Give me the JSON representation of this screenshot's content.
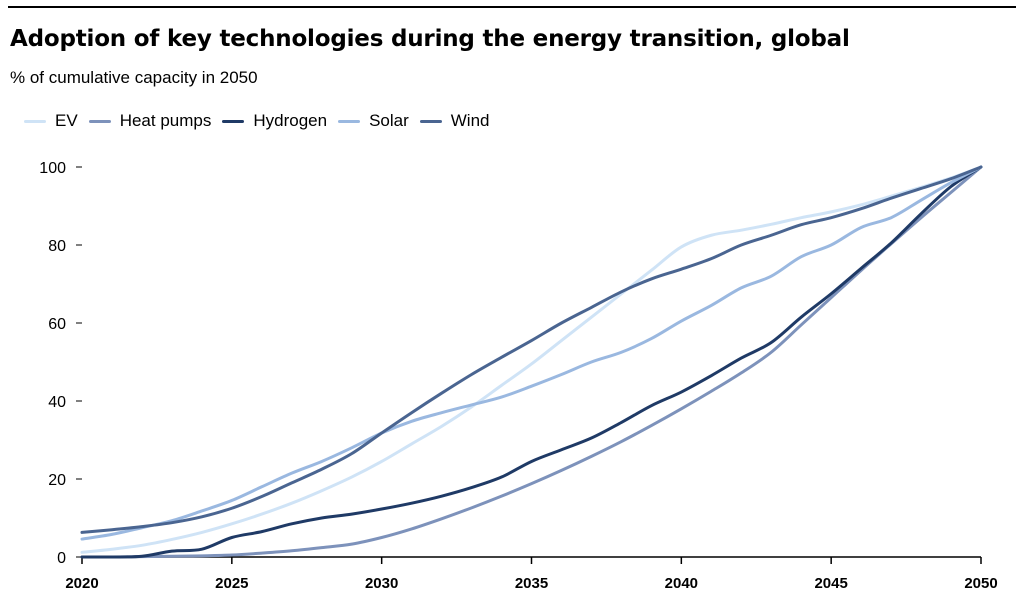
{
  "title": "Adoption of key technologies during the energy transition, global",
  "subtitle": "% of cumulative capacity in 2050",
  "colors": {
    "EV": "#cfe3f6",
    "Heat pumps": "#7d92bb",
    "Hydrogen": "#1f3a66",
    "Solar": "#9ab8e0",
    "Wind": "#4a6591"
  },
  "chart_data": {
    "type": "line",
    "title": "Adoption of key technologies during the energy transition, global",
    "subtitle": "% of cumulative capacity in 2050",
    "xlabel": "",
    "ylabel": "",
    "xlim": [
      2020,
      2050
    ],
    "ylim": [
      0,
      100
    ],
    "x_ticks": [
      2020,
      2025,
      2030,
      2035,
      2040,
      2045,
      2050
    ],
    "y_ticks": [
      0,
      20,
      40,
      60,
      80,
      100
    ],
    "grid": false,
    "legend": "top-left",
    "x": [
      2020,
      2021,
      2022,
      2023,
      2024,
      2025,
      2026,
      2027,
      2028,
      2029,
      2030,
      2031,
      2032,
      2033,
      2034,
      2035,
      2036,
      2037,
      2038,
      2039,
      2040,
      2041,
      2042,
      2043,
      2044,
      2045,
      2046,
      2047,
      2048,
      2049,
      2050
    ],
    "series": [
      {
        "name": "EV",
        "values": [
          1.2,
          2,
          3,
          4.5,
          6.3,
          8.5,
          11,
          13.8,
          17,
          20.5,
          24.5,
          29,
          33.5,
          38.5,
          44,
          49.5,
          55.5,
          61.5,
          67.5,
          73.5,
          79.5,
          82.5,
          83.8,
          85.3,
          87,
          88.5,
          90.3,
          92.5,
          94.8,
          97.2,
          100
        ]
      },
      {
        "name": "Heat pumps",
        "values": [
          0,
          0,
          0.1,
          0.2,
          0.3,
          0.5,
          1,
          1.6,
          2.4,
          3.3,
          5,
          7.2,
          9.8,
          12.6,
          15.6,
          18.8,
          22.2,
          25.8,
          29.6,
          33.7,
          38,
          42.5,
          47.2,
          52.5,
          59.5,
          66.5,
          73.5,
          80.3,
          87,
          93.5,
          100
        ]
      },
      {
        "name": "Hydrogen",
        "values": [
          0,
          0,
          0.2,
          1.5,
          2,
          5,
          6.5,
          8.5,
          10,
          11,
          12.3,
          13.8,
          15.6,
          17.8,
          20.5,
          24.5,
          27.5,
          30.5,
          34.5,
          38.8,
          42.3,
          46.5,
          51,
          55,
          61.5,
          67.5,
          74,
          80.5,
          88,
          95,
          100
        ]
      },
      {
        "name": "Solar",
        "values": [
          4.6,
          5.8,
          7.5,
          9.3,
          11.8,
          14.5,
          18,
          21.5,
          24.5,
          28,
          31.8,
          34.8,
          37,
          39,
          41,
          43.8,
          46.8,
          50,
          52.5,
          56,
          60.5,
          64.5,
          69,
          72,
          77,
          80,
          84.5,
          87,
          91.5,
          96,
          100
        ]
      },
      {
        "name": "Wind",
        "values": [
          6.3,
          7,
          7.8,
          8.8,
          10.3,
          12.5,
          15.5,
          19,
          22.5,
          26.5,
          31.8,
          37,
          42,
          46.8,
          51.2,
          55.5,
          60,
          64,
          68,
          71.3,
          73.8,
          76.5,
          80,
          82.5,
          85.2,
          87,
          89.3,
          92,
          94.5,
          97,
          100
        ]
      }
    ]
  }
}
